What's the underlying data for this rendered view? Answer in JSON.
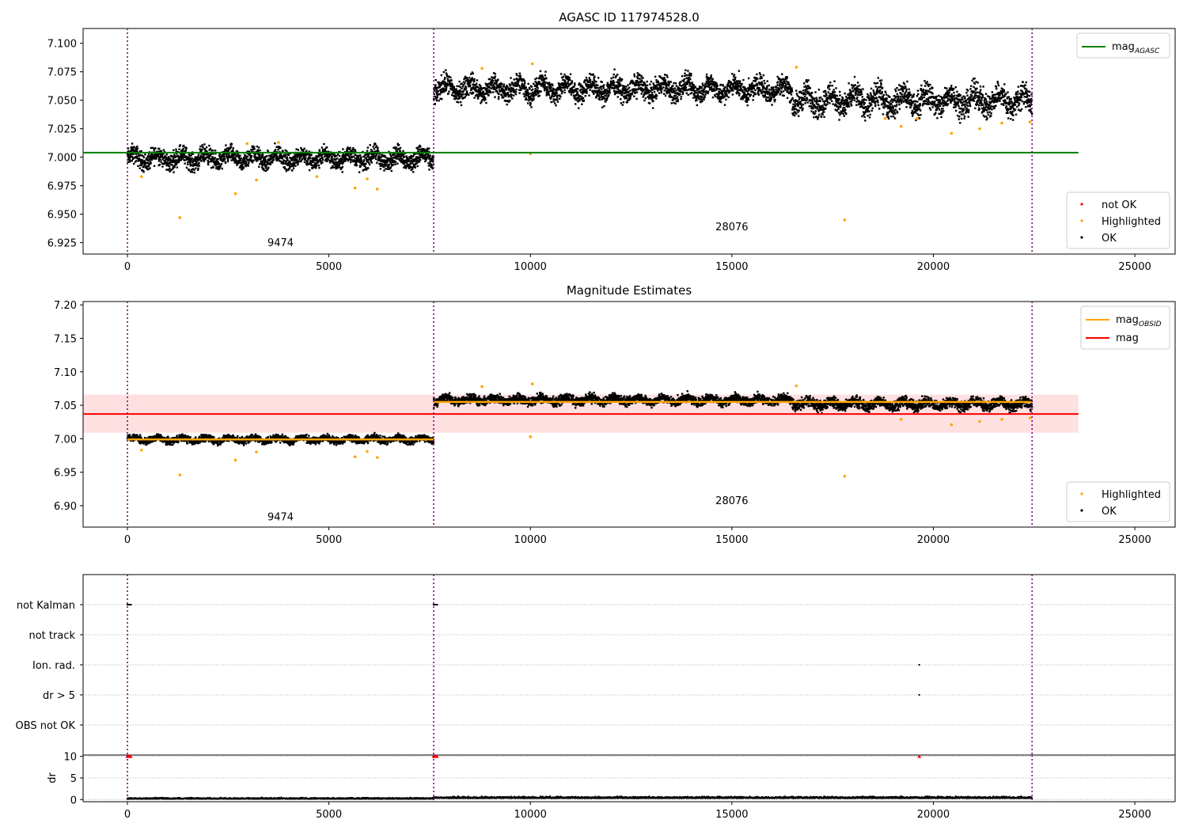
{
  "chart_data": [
    {
      "type": "scatter",
      "title": "AGASC ID 117974528.0",
      "xlabel": "",
      "ylabel": "",
      "xlim": [
        -1100,
        26000
      ],
      "ylim": [
        6.915,
        7.113
      ],
      "x_ticks": [
        "0",
        "5000",
        "10000",
        "15000",
        "20000",
        "25000"
      ],
      "y_ticks": [
        "6.925",
        "6.950",
        "6.975",
        "7.000",
        "7.025",
        "7.050",
        "7.075",
        "7.100"
      ],
      "grid": false,
      "obs_boundaries": [
        0,
        7600,
        22450
      ],
      "obsid_labels": [
        {
          "text": "9474",
          "x": 3800,
          "y": 6.922
        },
        {
          "text": "28076",
          "x": 15000,
          "y": 6.936
        }
      ],
      "series": [
        {
          "name": "OK",
          "color": "#000000",
          "segments": [
            {
              "x_start": 0,
              "x_end": 7600,
              "center": 6.999,
              "spread": 0.012
            },
            {
              "x_start": 7600,
              "x_end": 16500,
              "center": 7.06,
              "spread": 0.014
            },
            {
              "x_start": 16500,
              "x_end": 22450,
              "center": 7.05,
              "spread": 0.017
            }
          ]
        },
        {
          "name": "Highlighted",
          "color": "#ffa500",
          "points": [
            [
              1300,
              6.947
            ],
            [
              2680,
              6.968
            ],
            [
              3200,
              6.98
            ],
            [
              5650,
              6.973
            ],
            [
              5950,
              6.981
            ],
            [
              6200,
              6.972
            ],
            [
              4700,
              6.983
            ],
            [
              350,
              6.983
            ],
            [
              3750,
              7.013
            ],
            [
              2970,
              7.012
            ],
            [
              10000,
              7.003
            ],
            [
              10050,
              7.082
            ],
            [
              8800,
              7.078
            ],
            [
              16600,
              7.079
            ],
            [
              17800,
              6.945
            ],
            [
              19200,
              7.027
            ],
            [
              20450,
              7.021
            ],
            [
              21150,
              7.025
            ],
            [
              21700,
              7.03
            ],
            [
              22400,
              7.031
            ],
            [
              18800,
              7.034
            ],
            [
              19600,
              7.034
            ]
          ]
        },
        {
          "name": "not OK",
          "color": "#ff0000",
          "points": []
        }
      ],
      "lines": [
        {
          "name": "mag_AGASC",
          "color": "#008000",
          "y": 7.004,
          "x_start": -1100,
          "x_end": 23600
        }
      ],
      "legend_lines": [
        {
          "label": "mag",
          "sub": "AGASC",
          "color": "#008000"
        }
      ],
      "legend_points": [
        {
          "label": "not OK",
          "color": "#ff0000"
        },
        {
          "label": "Highlighted",
          "color": "#ffa500"
        },
        {
          "label": "OK",
          "color": "#000000"
        }
      ]
    },
    {
      "type": "scatter",
      "title": "Magnitude Estimates",
      "xlabel": "",
      "ylabel": "",
      "xlim": [
        -1100,
        26000
      ],
      "ylim": [
        6.868,
        7.205
      ],
      "x_ticks": [
        "0",
        "5000",
        "10000",
        "15000",
        "20000",
        "25000"
      ],
      "y_ticks": [
        "6.90",
        "6.95",
        "7.00",
        "7.05",
        "7.10",
        "7.15",
        "7.20"
      ],
      "grid": false,
      "obs_boundaries": [
        0,
        7600,
        22450
      ],
      "obsid_labels": [
        {
          "text": "9474",
          "x": 3800,
          "y": 6.878
        },
        {
          "text": "28076",
          "x": 15000,
          "y": 6.902
        }
      ],
      "band": {
        "color": "#ff0000",
        "opacity": 0.12,
        "y_low": 7.009,
        "y_high": 7.066,
        "x_start": -1100,
        "x_end": 23600
      },
      "series": [
        {
          "name": "OK",
          "color": "#000000",
          "segments": [
            {
              "x_start": 0,
              "x_end": 7600,
              "center": 6.999,
              "spread": 0.008
            },
            {
              "x_start": 7600,
              "x_end": 16500,
              "center": 7.058,
              "spread": 0.01
            },
            {
              "x_start": 16500,
              "x_end": 22450,
              "center": 7.052,
              "spread": 0.012
            }
          ]
        },
        {
          "name": "Highlighted",
          "color": "#ffa500",
          "points": [
            [
              1300,
              6.946
            ],
            [
              2680,
              6.968
            ],
            [
              3200,
              6.98
            ],
            [
              5650,
              6.973
            ],
            [
              5950,
              6.981
            ],
            [
              6200,
              6.972
            ],
            [
              350,
              6.983
            ],
            [
              10000,
              7.003
            ],
            [
              10050,
              7.082
            ],
            [
              8800,
              7.078
            ],
            [
              16600,
              7.079
            ],
            [
              17800,
              6.944
            ],
            [
              19200,
              7.029
            ],
            [
              20450,
              7.021
            ],
            [
              21150,
              7.026
            ],
            [
              21700,
              7.029
            ],
            [
              22400,
              7.031
            ]
          ]
        }
      ],
      "lines": [
        {
          "name": "mag_OBSID",
          "color": "#ffa500",
          "segments": [
            {
              "x_start": 0,
              "x_end": 7600,
              "y": 6.999
            },
            {
              "x_start": 7600,
              "x_end": 22450,
              "y": 7.055
            }
          ]
        },
        {
          "name": "mag",
          "color": "#ff0000",
          "y": 7.037,
          "x_start": -1100,
          "x_end": 23600
        }
      ],
      "legend_lines": [
        {
          "label": "mag",
          "sub": "OBSID",
          "color": "#ffa500"
        },
        {
          "label": "mag",
          "sub": "",
          "color": "#ff0000"
        }
      ],
      "legend_points": [
        {
          "label": "Highlighted",
          "color": "#ffa500"
        },
        {
          "label": "OK",
          "color": "#000000"
        }
      ]
    },
    {
      "type": "scatter",
      "title": "",
      "xlabel": "",
      "ylabel": "",
      "xlim": [
        -1100,
        26000
      ],
      "categories": [
        "not Kalman",
        "not track",
        "Ion. rad.",
        "dr > 5",
        "OBS not OK"
      ],
      "grid": true,
      "obs_boundaries": [
        0,
        7600,
        22450
      ],
      "flags": [
        {
          "category": "not Kalman",
          "x": [
            0,
            30,
            60,
            90,
            7600,
            7630,
            7660,
            7690
          ]
        },
        {
          "category": "Ion. rad.",
          "x": [
            19650
          ]
        },
        {
          "category": "dr > 5",
          "x": [
            19650
          ]
        }
      ]
    },
    {
      "type": "scatter",
      "title": "",
      "xlabel": "",
      "ylabel": "dr",
      "xlim": [
        -1100,
        26000
      ],
      "ylim": [
        -0.5,
        10.3
      ],
      "y_ticks": [
        "0",
        "5",
        "10"
      ],
      "x_ticks": [
        "0",
        "5000",
        "10000",
        "15000",
        "20000",
        "25000"
      ],
      "grid": true,
      "obs_boundaries": [
        0,
        7600,
        22450
      ],
      "series": [
        {
          "name": "dr",
          "color": "#000000",
          "segments": [
            {
              "x_start": 0,
              "x_end": 7600,
              "center": 0.15,
              "spread": 0.35
            },
            {
              "x_start": 7600,
              "x_end": 22450,
              "center": 0.3,
              "spread": 0.5
            }
          ]
        },
        {
          "name": "dr > 5",
          "color": "#ff0000",
          "points": [
            [
              0,
              10
            ],
            [
              40,
              10
            ],
            [
              80,
              10
            ],
            [
              7600,
              10
            ],
            [
              7640,
              10
            ],
            [
              7680,
              10
            ],
            [
              19650,
              10
            ]
          ]
        }
      ]
    }
  ]
}
